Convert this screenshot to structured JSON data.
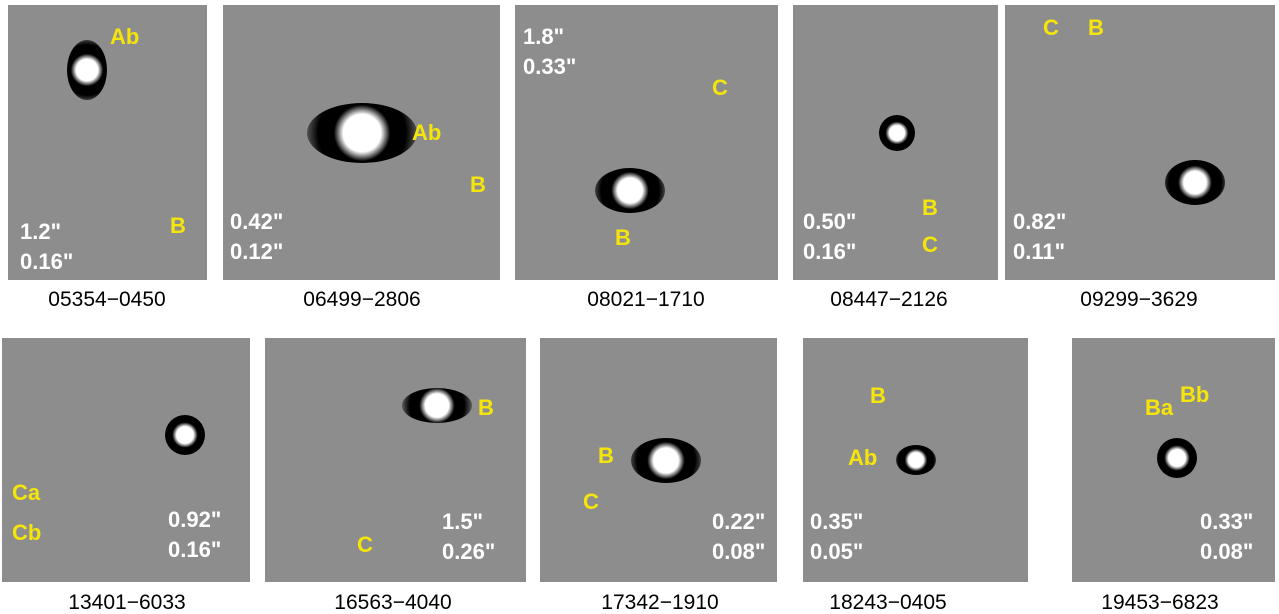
{
  "panels": [
    {
      "caption": "05354−0450",
      "labels": [
        "Ab",
        "B"
      ],
      "scale": [
        "1.2\"",
        "0.16\""
      ]
    },
    {
      "caption": "06499−2806",
      "labels": [
        "Ab",
        "B"
      ],
      "scale": [
        "0.42\"",
        "0.12\""
      ]
    },
    {
      "caption": "08021−1710",
      "labels": [
        "C",
        "B"
      ],
      "scale": [
        "1.8\"",
        "0.33\""
      ]
    },
    {
      "caption": "08447−2126",
      "labels": [
        "B",
        "C"
      ],
      "scale": [
        "0.50\"",
        "0.16\""
      ]
    },
    {
      "caption": "09299−3629",
      "labels": [
        "C",
        "B"
      ],
      "scale": [
        "0.82\"",
        "0.11\""
      ]
    },
    {
      "caption": "13401−6033",
      "labels": [
        "Ca",
        "Cb"
      ],
      "scale": [
        "0.92\"",
        "0.16\""
      ]
    },
    {
      "caption": "16563−4040",
      "labels": [
        "B",
        "C"
      ],
      "scale": [
        "1.5\"",
        "0.26\""
      ]
    },
    {
      "caption": "17342−1910",
      "labels": [
        "B",
        "C"
      ],
      "scale": [
        "0.22\"",
        "0.08\""
      ]
    },
    {
      "caption": "18243−0405",
      "labels": [
        "B",
        "Ab"
      ],
      "scale": [
        "0.35\"",
        "0.05\""
      ]
    },
    {
      "caption": "19453−6823",
      "labels": [
        "Ba",
        "Bb"
      ],
      "scale": [
        "0.33\"",
        "0.08\""
      ]
    }
  ]
}
